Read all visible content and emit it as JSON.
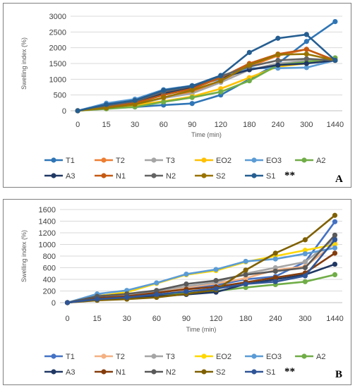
{
  "chart_data": [
    {
      "type": "line",
      "panel_label": "A",
      "ylabel": "Swelling index (%)",
      "xlabel": "Time (min)",
      "categories": [
        "0",
        "15",
        "30",
        "60",
        "90",
        "120",
        "180",
        "240",
        "300",
        "1440"
      ],
      "ylim": [
        0,
        3000
      ],
      "yticks": [
        0,
        500,
        1000,
        1500,
        2000,
        2500,
        3000
      ],
      "grid": true,
      "legend_position": "bottom",
      "legend_note": "**",
      "series": [
        {
          "name": "T1",
          "color": "#2e75b6",
          "values": [
            0,
            80,
            120,
            180,
            230,
            500,
            1000,
            1500,
            2200,
            2830
          ]
        },
        {
          "name": "T2",
          "color": "#ed7d31",
          "values": [
            0,
            100,
            180,
            420,
            600,
            950,
            1400,
            1750,
            1950,
            1600
          ]
        },
        {
          "name": "T3",
          "color": "#a5a5a5",
          "values": [
            0,
            110,
            200,
            400,
            550,
            900,
            1300,
            1500,
            1600,
            1600
          ]
        },
        {
          "name": "EO2",
          "color": "#ffc000",
          "values": [
            0,
            100,
            180,
            300,
            450,
            700,
            1050,
            1400,
            1500,
            1650
          ]
        },
        {
          "name": "EO3",
          "color": "#5b9bd5",
          "values": [
            0,
            240,
            370,
            670,
            800,
            1000,
            1350,
            1350,
            1370,
            1600
          ]
        },
        {
          "name": "A2",
          "color": "#70ad47",
          "values": [
            0,
            60,
            120,
            280,
            420,
            600,
            950,
            1450,
            1550,
            1680
          ]
        },
        {
          "name": "A3",
          "color": "#1f3864",
          "values": [
            0,
            150,
            280,
            550,
            750,
            1050,
            1300,
            1450,
            1500,
            1600
          ]
        },
        {
          "name": "N1",
          "color": "#c55a11",
          "values": [
            0,
            120,
            240,
            500,
            700,
            1050,
            1500,
            1800,
            1950,
            1600
          ]
        },
        {
          "name": "N2",
          "color": "#636363",
          "values": [
            0,
            160,
            300,
            600,
            780,
            1100,
            1400,
            1600,
            1650,
            1600
          ]
        },
        {
          "name": "S2",
          "color": "#997300",
          "values": [
            0,
            90,
            200,
            420,
            650,
            950,
            1450,
            1780,
            1800,
            1600
          ]
        },
        {
          "name": "S1",
          "color": "#255e91",
          "values": [
            0,
            200,
            330,
            650,
            790,
            1120,
            1850,
            2300,
            2420,
            1600
          ]
        }
      ]
    },
    {
      "type": "line",
      "panel_label": "B",
      "ylabel": "Swelling index (%)",
      "xlabel": "Time (min)",
      "categories": [
        "0",
        "15",
        "30",
        "60",
        "90",
        "120",
        "180",
        "240",
        "300",
        "1440"
      ],
      "ylim": [
        0,
        1600
      ],
      "yticks": [
        0,
        200,
        400,
        600,
        800,
        1000,
        1200,
        1400,
        1600
      ],
      "grid": true,
      "legend_position": "bottom",
      "legend_note": "**",
      "series": [
        {
          "name": "T1",
          "color": "#4472c4",
          "values": [
            0,
            120,
            150,
            200,
            250,
            300,
            400,
            450,
            700,
            1390
          ]
        },
        {
          "name": "T2",
          "color": "#f4b183",
          "values": [
            0,
            100,
            140,
            200,
            260,
            330,
            420,
            560,
            620,
            1020
          ]
        },
        {
          "name": "T3",
          "color": "#a5a5a5",
          "values": [
            0,
            90,
            130,
            200,
            280,
            350,
            500,
            600,
            700,
            1100
          ]
        },
        {
          "name": "EO2",
          "color": "#ffd700",
          "values": [
            0,
            110,
            180,
            330,
            480,
            550,
            700,
            800,
            900,
            1000
          ]
        },
        {
          "name": "EO3",
          "color": "#5b9bd5",
          "values": [
            0,
            150,
            210,
            340,
            490,
            570,
            710,
            750,
            840,
            940
          ]
        },
        {
          "name": "A2",
          "color": "#70ad47",
          "values": [
            0,
            60,
            90,
            130,
            160,
            200,
            260,
            310,
            360,
            480
          ]
        },
        {
          "name": "A3",
          "color": "#203864",
          "values": [
            0,
            50,
            70,
            110,
            140,
            180,
            320,
            400,
            480,
            660
          ]
        },
        {
          "name": "N1",
          "color": "#843c0c",
          "values": [
            0,
            80,
            110,
            170,
            230,
            270,
            350,
            430,
            510,
            850
          ]
        },
        {
          "name": "N2",
          "color": "#595959",
          "values": [
            0,
            110,
            150,
            210,
            320,
            380,
            480,
            540,
            600,
            1160
          ]
        },
        {
          "name": "S2",
          "color": "#7f6000",
          "values": [
            0,
            40,
            60,
            90,
            150,
            220,
            560,
            850,
            1080,
            1500
          ]
        },
        {
          "name": "S1",
          "color": "#2f5597",
          "values": [
            0,
            60,
            90,
            140,
            190,
            240,
            320,
            360,
            460,
            1080
          ]
        }
      ]
    }
  ]
}
